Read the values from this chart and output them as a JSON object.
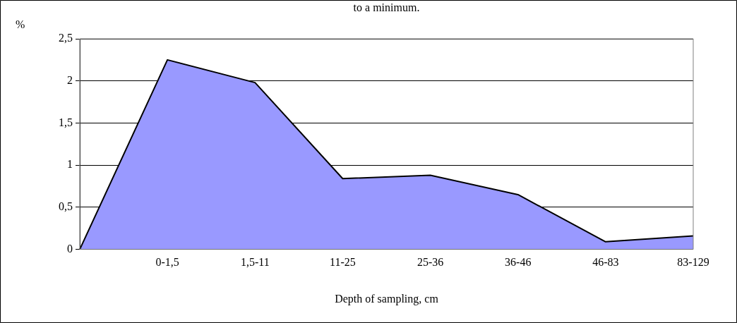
{
  "chart_data": {
    "type": "area",
    "ylabel": "%",
    "xlabel": "Depth of sampling, cm",
    "annotations": [
      "to a minimum."
    ],
    "categories": [
      null,
      "0-1,5",
      "1,5-11",
      "11-25",
      "25-36",
      "36-46",
      "46-83",
      "83-129"
    ],
    "series": [
      {
        "color": "#9999ff",
        "values": [
          0,
          2.25,
          1.98,
          0.84,
          0.88,
          0.65,
          0.09,
          0.16
        ]
      }
    ],
    "ylim": [
      0,
      2.5
    ],
    "yticks": [
      0,
      {
        "value": 0.5,
        "label": "0,5"
      },
      1,
      {
        "value": 1.5,
        "label": "1,5"
      },
      2,
      {
        "value": 2.5,
        "label": "2,5"
      }
    ],
    "grid": "y",
    "marker": "none",
    "legend": false
  }
}
